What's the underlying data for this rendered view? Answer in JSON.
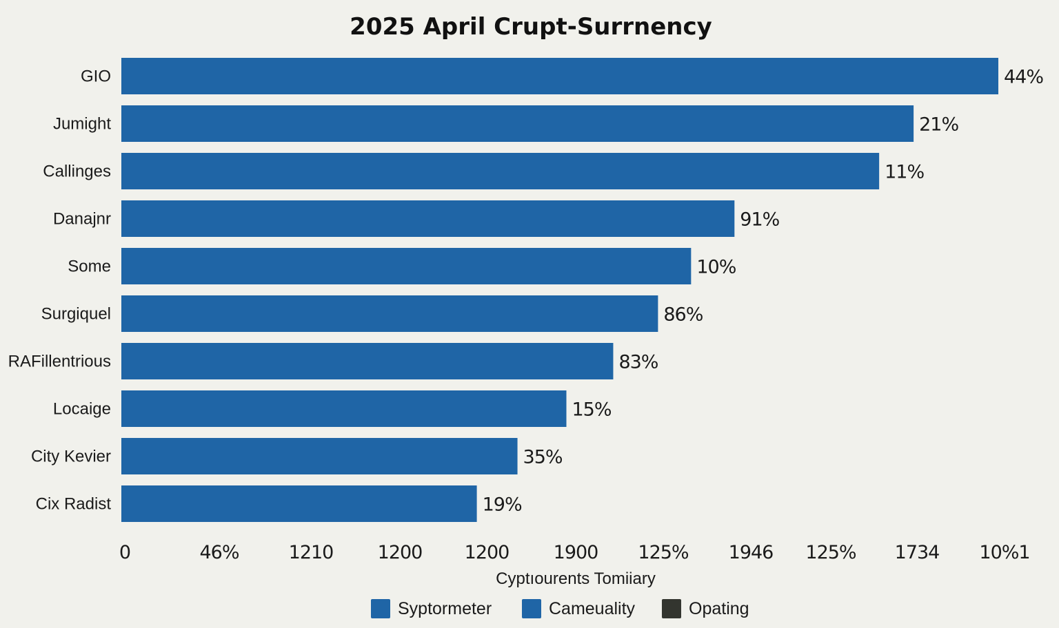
{
  "chart_data": {
    "type": "bar",
    "orientation": "horizontal",
    "title": "2025  April  Crupt-Surrnency",
    "xlabel": "Cyptıourents  Tomiiary",
    "ylabel": "",
    "categories": [
      "GIO",
      "Jumight",
      "Callinges",
      "Danajnr",
      "Some",
      "Surgiquel",
      "RAFillentrious",
      "Locaige",
      "City Kevier",
      "Cix Radist"
    ],
    "values": [
      1273,
      1150,
      1100,
      890,
      827,
      779,
      714,
      646,
      575,
      516
    ],
    "value_labels": [
      "44%",
      "21%",
      "11%",
      "91%",
      "10%",
      "86%",
      "83%",
      "15%",
      "35%",
      "19%"
    ],
    "xlim": [
      0,
      1275
    ],
    "x_tick_labels": [
      "0",
      "46%",
      "1210",
      "1200",
      "1200",
      "1900",
      "125%",
      "1946",
      "125%",
      "1734",
      "10%1"
    ],
    "grid": false,
    "legend_position": "bottom",
    "legend": [
      {
        "label": "Syptormeter",
        "color": "#1f65a6"
      },
      {
        "label": "Cameuality",
        "color": "#1f65a6"
      },
      {
        "label": "Opating",
        "color": "#33352f"
      }
    ],
    "bar_color": "#1f65a6"
  }
}
